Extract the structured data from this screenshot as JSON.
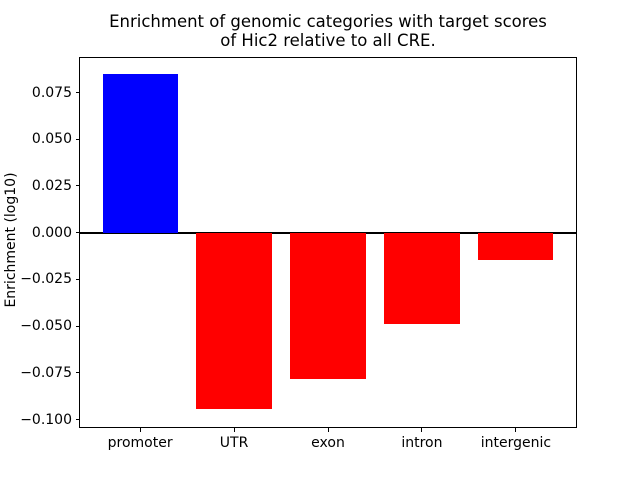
{
  "chart_data": {
    "type": "bar",
    "title": "Enrichment of genomic categories with target scores\nof Hic2 relative to all CRE.",
    "title_lines": [
      "Enrichment of genomic categories with target scores",
      "of Hic2 relative to all CRE."
    ],
    "xlabel": "",
    "ylabel": "Enrichment (log10)",
    "categories": [
      "promoter",
      "UTR",
      "exon",
      "intron",
      "intergenic"
    ],
    "values": [
      0.085,
      -0.0945,
      -0.0785,
      -0.049,
      -0.0147
    ],
    "bar_colors": [
      "#0000ff",
      "#ff0000",
      "#ff0000",
      "#ff0000",
      "#ff0000"
    ],
    "positive_color": "#0000ff",
    "negative_color": "#ff0000",
    "yticks": [
      0.075,
      0.05,
      0.025,
      0.0,
      -0.025,
      -0.05,
      -0.075,
      -0.1
    ],
    "ytick_labels": [
      "0.075",
      "0.050",
      "0.025",
      "0.000",
      "−0.025",
      "−0.050",
      "−0.075",
      "−0.100"
    ],
    "ylim": [
      -0.104,
      0.0935
    ],
    "xlim": [
      -0.64,
      4.64
    ],
    "bar_width": 0.8,
    "grid": false,
    "zero_line": true,
    "legend": null,
    "background_color": "#ffffff",
    "axis_color": "#000000"
  }
}
